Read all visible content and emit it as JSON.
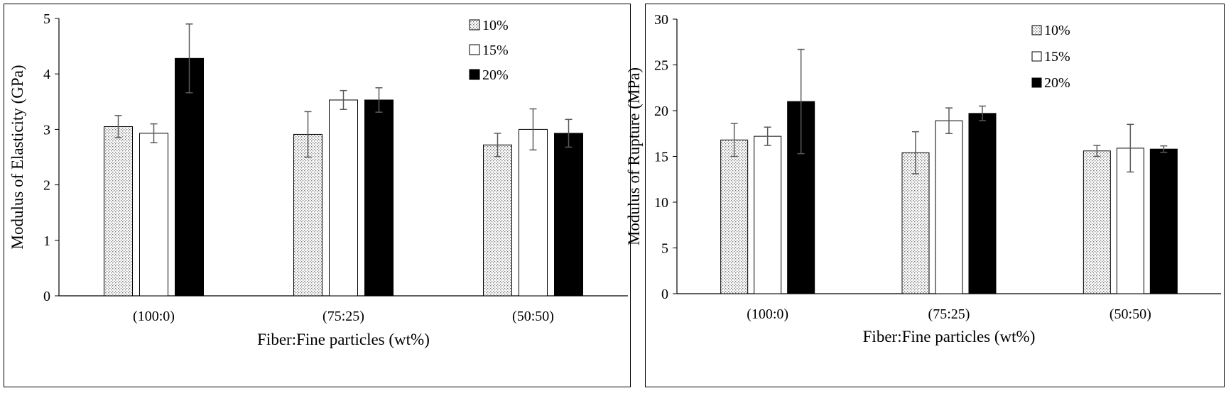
{
  "chart_data": [
    {
      "type": "bar",
      "xlabel": "Fiber:Fine particles (wt%)",
      "ylabel": "Modulus of Elasticity (GPa)",
      "categories": [
        "(100:0)",
        "(75:25)",
        "(50:50)"
      ],
      "ylim": [
        0,
        5
      ],
      "yticks": [
        0,
        1,
        2,
        3,
        4,
        5
      ],
      "grid": false,
      "legend_position": "top-right",
      "series": [
        {
          "name": "10%",
          "fill": "dotted",
          "values": [
            3.05,
            2.91,
            2.72
          ],
          "errors": [
            0.2,
            0.41,
            0.21
          ]
        },
        {
          "name": "15%",
          "fill": "white",
          "values": [
            2.93,
            3.53,
            3.0
          ],
          "errors": [
            0.17,
            0.17,
            0.37
          ]
        },
        {
          "name": "20%",
          "fill": "black",
          "values": [
            4.28,
            3.53,
            2.93
          ],
          "errors": [
            0.62,
            0.22,
            0.25
          ]
        }
      ]
    },
    {
      "type": "bar",
      "xlabel": "Fiber:Fine particles (wt%)",
      "ylabel": "Modulus of Rupture (MPa)",
      "categories": [
        "(100:0)",
        "(75:25)",
        "(50:50)"
      ],
      "ylim": [
        0,
        30
      ],
      "yticks": [
        0,
        5,
        10,
        15,
        20,
        25,
        30
      ],
      "grid": false,
      "legend_position": "top-right",
      "series": [
        {
          "name": "10%",
          "fill": "dotted",
          "values": [
            16.8,
            15.4,
            15.6
          ],
          "errors": [
            1.8,
            2.3,
            0.6
          ]
        },
        {
          "name": "15%",
          "fill": "white",
          "values": [
            17.2,
            18.9,
            15.9
          ],
          "errors": [
            1.0,
            1.4,
            2.6
          ]
        },
        {
          "name": "20%",
          "fill": "black",
          "values": [
            21.0,
            19.7,
            15.8
          ],
          "errors": [
            5.7,
            0.8,
            0.35
          ]
        }
      ]
    }
  ],
  "colors": {
    "bar_black": "#000000",
    "bar_white": "#ffffff",
    "dot": "#7a7a7a",
    "error_bar": "#5a5a5a"
  }
}
